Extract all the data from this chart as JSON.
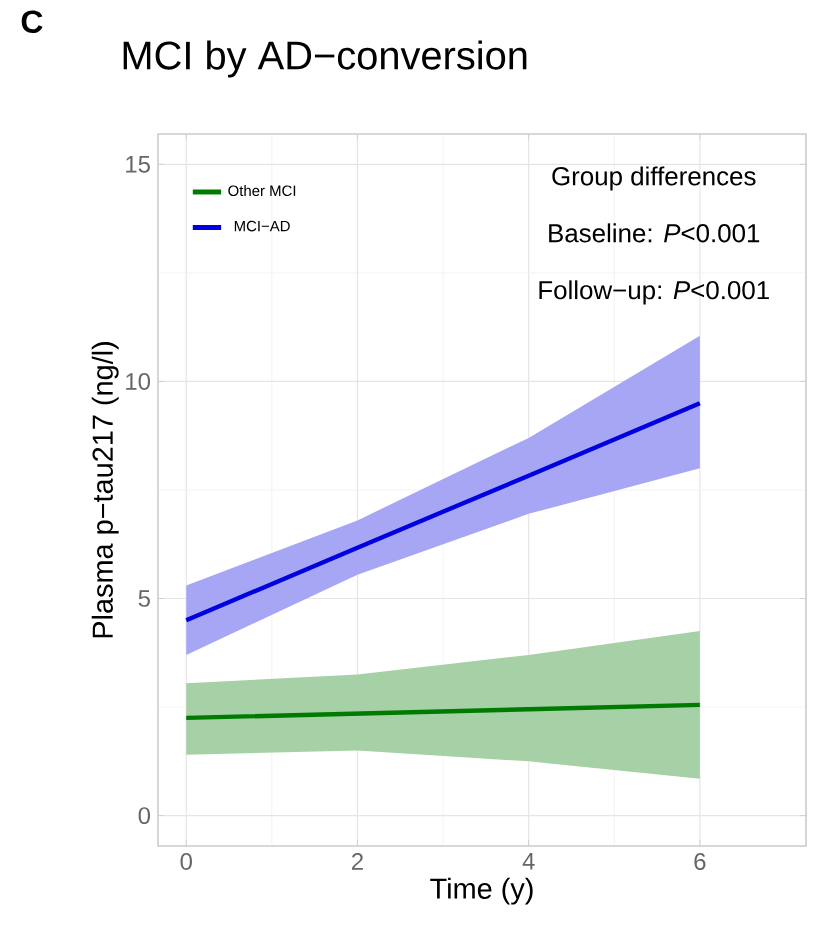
{
  "chart_data": {
    "type": "line",
    "title": "MCI by AD−conversion",
    "xlabel": "Time (y)",
    "ylabel": "Plasma p−tau217 (ng/l)",
    "annotations": [
      "C",
      "Group differences",
      "Baseline: *P*<0.001",
      "Follow−up: *P*<0.001"
    ],
    "x": [
      0,
      2,
      4,
      6
    ],
    "series": [
      {
        "name": "Other MCI",
        "color": "#007a00",
        "values": [
          2.25,
          2.35,
          2.45,
          2.55
        ],
        "lower": [
          1.4,
          1.5,
          1.25,
          0.85
        ],
        "upper": [
          3.05,
          3.25,
          3.7,
          4.25
        ]
      },
      {
        "name": "MCI−AD",
        "color": "#0000e0",
        "values": [
          4.5,
          6.17,
          7.83,
          9.5
        ],
        "lower": [
          3.7,
          5.55,
          6.95,
          8.0
        ],
        "upper": [
          5.3,
          6.8,
          8.7,
          11.05
        ]
      }
    ],
    "xlim": [
      -0.33,
      7.24
    ],
    "ylim": [
      -0.7,
      15.7
    ],
    "xticks": [
      0,
      2,
      4,
      6
    ],
    "yticks": [
      0,
      5,
      10,
      15
    ],
    "grid": true,
    "legend": "top left",
    "marker": "none",
    "line_style": "solid"
  }
}
